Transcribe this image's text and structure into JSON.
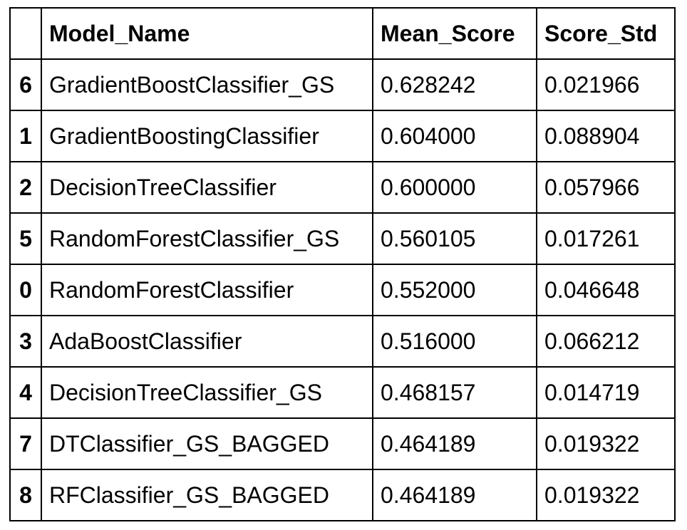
{
  "table": {
    "columns": [
      "",
      "Model_Name",
      "Mean_Score",
      "Score_Std"
    ],
    "rows": [
      {
        "index": "6",
        "model_name": "GradientBoostClassifier_GS",
        "mean_score": "0.628242",
        "score_std": "0.021966"
      },
      {
        "index": "1",
        "model_name": "GradientBoostingClassifier",
        "mean_score": "0.604000",
        "score_std": "0.088904"
      },
      {
        "index": "2",
        "model_name": "DecisionTreeClassifier",
        "mean_score": "0.600000",
        "score_std": "0.057966"
      },
      {
        "index": "5",
        "model_name": "RandomForestClassifier_GS",
        "mean_score": "0.560105",
        "score_std": "0.017261"
      },
      {
        "index": "0",
        "model_name": "RandomForestClassifier",
        "mean_score": "0.552000",
        "score_std": "0.046648"
      },
      {
        "index": "3",
        "model_name": "AdaBoostClassifier",
        "mean_score": "0.516000",
        "score_std": "0.066212"
      },
      {
        "index": "4",
        "model_name": "DecisionTreeClassifier_GS",
        "mean_score": "0.468157",
        "score_std": "0.014719"
      },
      {
        "index": "7",
        "model_name": "DTClassifier_GS_BAGGED",
        "mean_score": "0.464189",
        "score_std": "0.019322"
      },
      {
        "index": "8",
        "model_name": "RFClassifier_GS_BAGGED",
        "mean_score": "0.464189",
        "score_std": "0.019322"
      }
    ]
  }
}
